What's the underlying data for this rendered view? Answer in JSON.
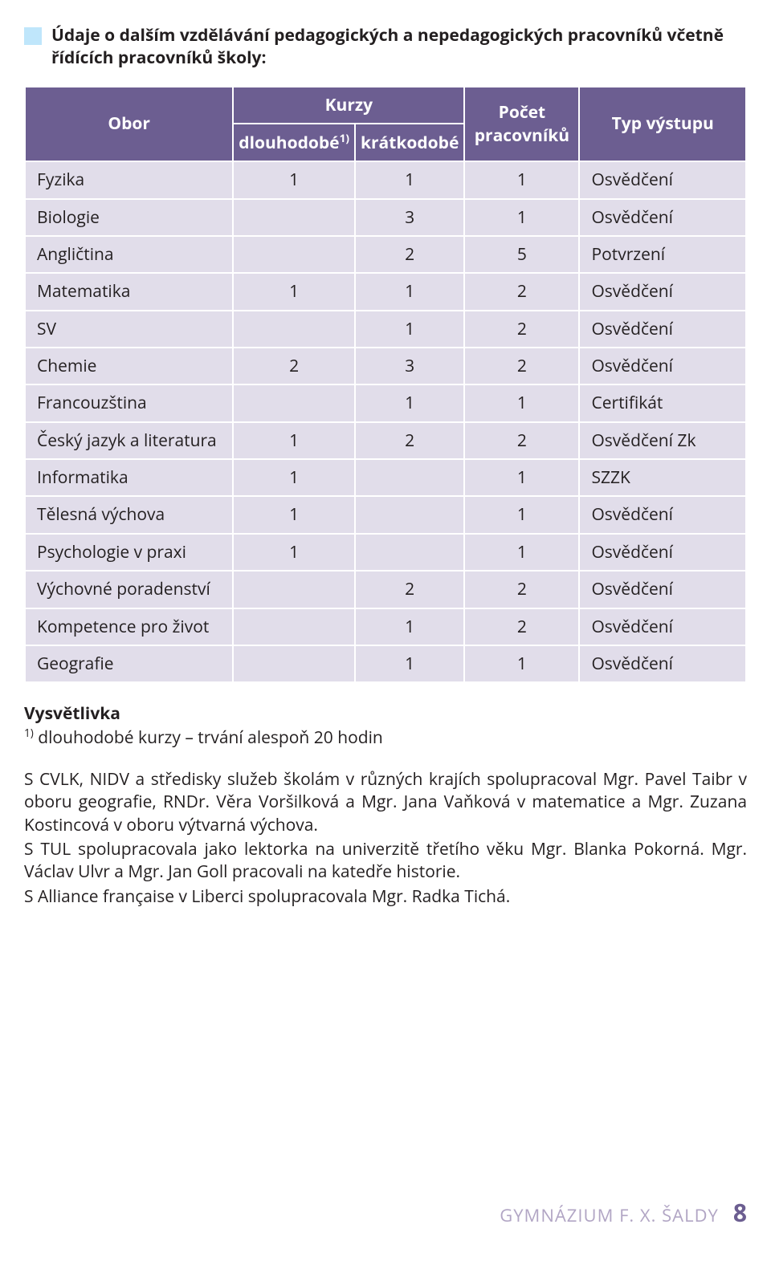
{
  "colors": {
    "th_bg": "#6c5e91",
    "th_fg": "#ffffff",
    "td_bg": "#e1ddea",
    "td_fg": "#231f20",
    "bullet_bg": "#bfe6fb",
    "footer_fg": "#b1a5c4",
    "page_number_fg": "#6c5e91",
    "page_bg": "#ffffff"
  },
  "heading": "Údaje o dalším vzdělávání pedagogických a nepedagogických pracovníků včetně řídících pracovníků školy:",
  "table": {
    "header": {
      "obor": "Obor",
      "kurzy": "Kurzy",
      "dlouhodobe": "dlouhodobé",
      "dlouhodobe_sup": "1)",
      "kratkodobe": "krátkodobé",
      "pocet": "Počet pracovníků",
      "typ": "Typ výstupu"
    },
    "rows": [
      {
        "label": "Fyzika",
        "dl": "1",
        "kr": "1",
        "pocet": "1",
        "typ": "Osvědčení"
      },
      {
        "label": "Biologie",
        "dl": "",
        "kr": "3",
        "pocet": "1",
        "typ": "Osvědčení"
      },
      {
        "label": "Angličtina",
        "dl": "",
        "kr": "2",
        "pocet": "5",
        "typ": "Potvrzení"
      },
      {
        "label": "Matematika",
        "dl": "1",
        "kr": "1",
        "pocet": "2",
        "typ": "Osvědčení"
      },
      {
        "label": "SV",
        "dl": "",
        "kr": "1",
        "pocet": "2",
        "typ": "Osvědčení"
      },
      {
        "label": "Chemie",
        "dl": "2",
        "kr": "3",
        "pocet": "2",
        "typ": "Osvědčení"
      },
      {
        "label": "Francouzština",
        "dl": "",
        "kr": "1",
        "pocet": "1",
        "typ": "Certifikát"
      },
      {
        "label": "Český jazyk a literatura",
        "dl": "1",
        "kr": "2",
        "pocet": "2",
        "typ": "Osvědčení Zk"
      },
      {
        "label": "Informatika",
        "dl": "1",
        "kr": "",
        "pocet": "1",
        "typ": "SZZK"
      },
      {
        "label": "Tělesná výchova",
        "dl": "1",
        "kr": "",
        "pocet": "1",
        "typ": "Osvědčení"
      },
      {
        "label": "Psychologie v praxi",
        "dl": "1",
        "kr": "",
        "pocet": "1",
        "typ": "Osvědčení"
      },
      {
        "label": "Výchovné poradenství",
        "dl": "",
        "kr": "2",
        "pocet": "2",
        "typ": "Osvědčení"
      },
      {
        "label": "Kompetence pro život",
        "dl": "",
        "kr": "1",
        "pocet": "2",
        "typ": "Osvědčení"
      },
      {
        "label": "Geografie",
        "dl": "",
        "kr": "1",
        "pocet": "1",
        "typ": "Osvědčení"
      }
    ],
    "col_widths_pct": [
      30,
      15,
      15,
      16,
      24
    ]
  },
  "legend": {
    "title": "Vysvětlivka",
    "sup": "1)",
    "text": " dlouhodobé kurzy – trvání alespoň 20 hodin"
  },
  "paragraphs": [
    "S CVLK, NIDV a středisky služeb školám v různých krajích spolupracoval Mgr. Pavel Taibr v oboru geografie, RNDr. Věra Voršilková a Mgr. Jana Vaňková v matematice a Mgr. Zuzana Kostincová v oboru výtvarná výchova.",
    "S TUL spolupracovala jako lektorka na univerzitě třetího věku Mgr. Blanka Pokorná. Mgr. Václav Ulvr a Mgr. Jan Goll pracovali na katedře historie.",
    "S Alliance française v Liberci spolupracovala Mgr. Radka Tichá."
  ],
  "footer": {
    "text": "GYMNÁZIUM F. X. ŠALDY",
    "page": "8"
  }
}
